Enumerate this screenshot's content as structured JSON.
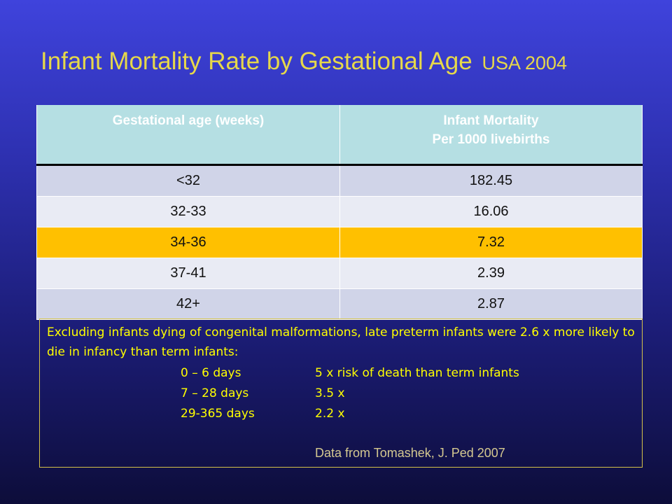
{
  "slide": {
    "title": "Infant Mortality Rate by Gestational Age",
    "title_suffix": "USA 2004"
  },
  "table": {
    "headers": {
      "col1": "Gestational age (weeks)",
      "col2_line1": "Infant Mortality",
      "col2_line2": "Per 1000 livebirths"
    },
    "rows": [
      {
        "age": "<32",
        "rate": "182.45"
      },
      {
        "age": "32-33",
        "rate": "16.06"
      },
      {
        "age": "34-36",
        "rate": "7.32"
      },
      {
        "age": "37-41",
        "rate": "2.39"
      },
      {
        "age": "42+",
        "rate": "2.87"
      }
    ]
  },
  "note": {
    "intro": "Excluding infants dying of congenital malformations, late preterm infants were 2.6 x more likely to die in infancy than term infants:",
    "details": [
      {
        "label": "0 – 6 days",
        "value": "5 x  risk of death than term infants"
      },
      {
        "label": "7 – 28 days",
        "value": "3.5 x"
      },
      {
        "label": "29-365 days",
        "value": "2.2 x"
      }
    ],
    "source": "Data from Tomashek, J. Ped 2007"
  },
  "colors": {
    "title": "#e6d84a",
    "header_bg": "#b5dfe3",
    "highlight_row": "#ffc000",
    "note_text": "#ffff00"
  }
}
